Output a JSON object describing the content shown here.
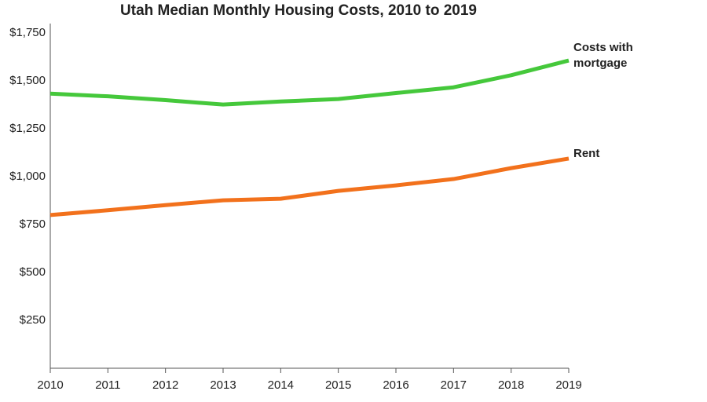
{
  "chart_data": {
    "type": "line",
    "title": "Utah Median Monthly Housing Costs, 2010 to 2019",
    "x": [
      2010,
      2011,
      2012,
      2013,
      2014,
      2015,
      2016,
      2017,
      2018,
      2019
    ],
    "series": [
      {
        "name": "Costs with mortgage",
        "color": "#45c83b",
        "values": [
          1434,
          1420,
          1400,
          1377,
          1393,
          1406,
          1437,
          1467,
          1530,
          1607
        ]
      },
      {
        "name": "Rent",
        "color": "#f2711c",
        "values": [
          800,
          825,
          852,
          877,
          885,
          926,
          955,
          988,
          1045,
          1095
        ]
      }
    ],
    "xlim": [
      2010,
      2019
    ],
    "xticks": [
      2010,
      2011,
      2012,
      2013,
      2014,
      2015,
      2016,
      2017,
      2018,
      2019
    ],
    "ylim": [
      0,
      1800
    ],
    "yticks": [
      {
        "value": 250,
        "label": "$250"
      },
      {
        "value": 500,
        "label": "$500"
      },
      {
        "value": 750,
        "label": "$750"
      },
      {
        "value": 1000,
        "label": "$1,000"
      },
      {
        "value": 1250,
        "label": "$1,250"
      },
      {
        "value": 1500,
        "label": "$1,500"
      },
      {
        "value": 1750,
        "label": "$1,750"
      }
    ],
    "grid": false
  }
}
